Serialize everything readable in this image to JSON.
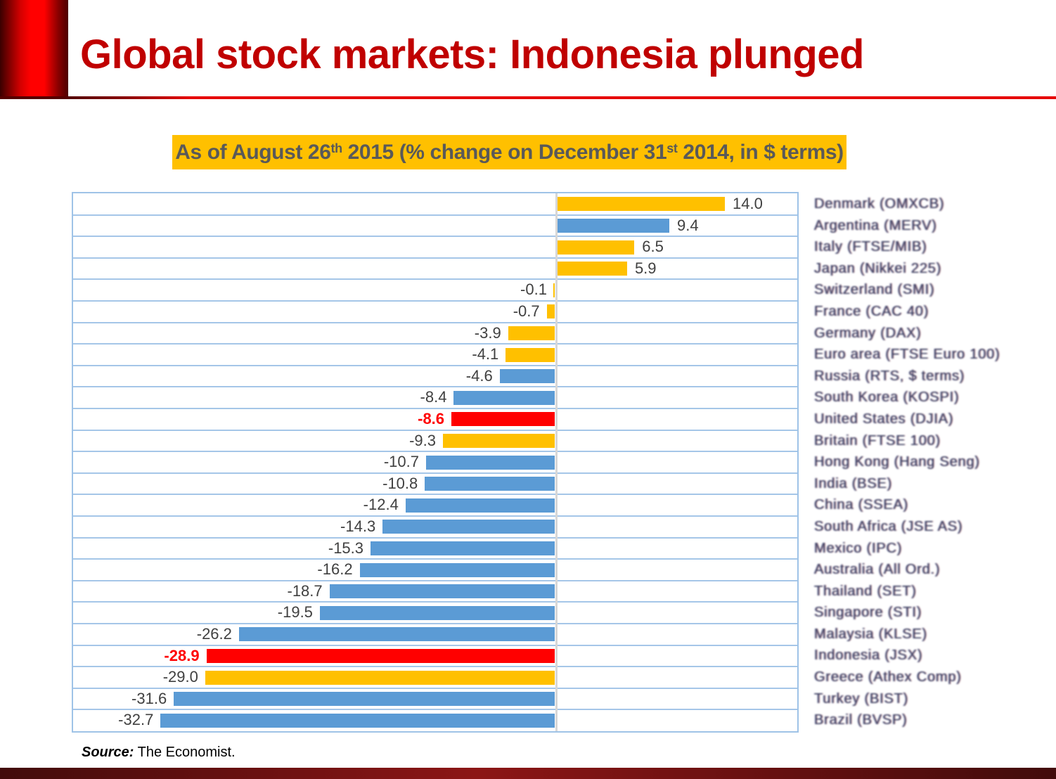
{
  "slide": {
    "title": "Global stock markets: Indonesia plunged",
    "subtitle": {
      "prefix": "As of August 26",
      "sup1": "th",
      "mid": " 2015 (% change on December 31",
      "sup2": "st",
      "suffix": " 2014, in $ terms)"
    },
    "source": {
      "label": "Source:",
      "text": " The Economist."
    }
  },
  "colors": {
    "title": "#C00000",
    "accent_line": "#E60000",
    "subtitle_bg": "#FFC000",
    "subtitle_text": "#595959",
    "chart_border": "#9FC3E7",
    "gridline": "#A5C6E8",
    "zero_line": "#D7D7D7",
    "value_label": "#404040",
    "value_label_highlight": "#FF0000",
    "category_label": "#2C385C",
    "bar_blue": "#5B9BD5",
    "bar_yellow": "#FFC000",
    "bar_red": "#FF0000",
    "footer_bar": "#8C1616"
  },
  "chart_data": {
    "type": "bar",
    "orientation": "horizontal",
    "title": "As of August 26th 2015 (% change on December 31st 2014, in $ terms)",
    "xlabel": "",
    "ylabel": "",
    "xlim": [
      -40,
      20
    ],
    "grid": "horizontal row separators only",
    "legend": "none",
    "value_labels": "at bar ends, one decimal",
    "categories": [
      "Denmark (OMXCB)",
      "Argentina (MERV)",
      "Italy (FTSE/MIB)",
      "Japan (Nikkei 225)",
      "Switzerland (SMI)",
      "France (CAC 40)",
      "Germany (DAX)",
      "Euro area (FTSE Euro 100)",
      "Russia (RTS, $ terms)",
      "South Korea (KOSPI)",
      "United States (DJIA)",
      "Britain (FTSE 100)",
      "Hong Kong (Hang Seng)",
      "India (BSE)",
      "China (SSEA)",
      "South Africa (JSE AS)",
      "Mexico (IPC)",
      "Australia (All Ord.)",
      "Thailand (SET)",
      "Singapore (STI)",
      "Malaysia (KLSE)",
      "Indonesia (JSX)",
      "Greece (Athex Comp)",
      "Turkey (BIST)",
      "Brazil (BVSP)"
    ],
    "values": [
      14.0,
      9.4,
      6.5,
      5.9,
      -0.1,
      -0.7,
      -3.9,
      -4.1,
      -4.6,
      -8.4,
      -8.6,
      -9.3,
      -10.7,
      -10.8,
      -12.4,
      -14.3,
      -15.3,
      -16.2,
      -18.7,
      -19.5,
      -26.2,
      -28.9,
      -29.0,
      -31.6,
      -32.7
    ],
    "bar_colors": [
      "#FFC000",
      "#5B9BD5",
      "#FFC000",
      "#FFC000",
      "#FFC000",
      "#FFC000",
      "#FFC000",
      "#FFC000",
      "#5B9BD5",
      "#5B9BD5",
      "#FF0000",
      "#FFC000",
      "#5B9BD5",
      "#5B9BD5",
      "#5B9BD5",
      "#5B9BD5",
      "#5B9BD5",
      "#5B9BD5",
      "#5B9BD5",
      "#5B9BD5",
      "#5B9BD5",
      "#FF0000",
      "#FFC000",
      "#5B9BD5",
      "#5B9BD5"
    ],
    "highlighted_value_labels": [
      10,
      21
    ]
  }
}
